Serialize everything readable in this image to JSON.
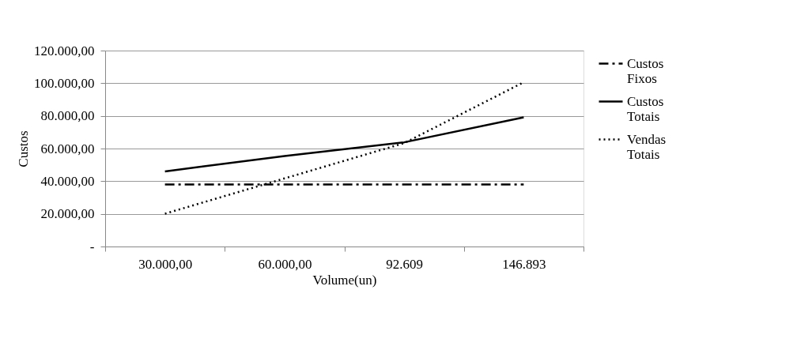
{
  "chart_data": {
    "type": "line",
    "xlabel": "Volume(un)",
    "ylabel": "Custos",
    "categories": [
      "30.000,00",
      "60.000,00",
      "92.609",
      "146.893"
    ],
    "series": [
      {
        "name": "Custos Fixos",
        "color": "#000000",
        "line_style": "dashed",
        "values": [
          38000,
          38000,
          38000,
          38000
        ]
      },
      {
        "name": "Custos Totais",
        "color": "#000000",
        "line_style": "solid",
        "values": [
          46000,
          55400,
          63800,
          79100
        ]
      },
      {
        "name": "Vendas Totais",
        "color": "#000000",
        "line_style": "dotted",
        "values": [
          20100,
          41700,
          63300,
          100600
        ]
      }
    ],
    "ylim": [
      0,
      120000
    ],
    "yticks": [
      {
        "value": 0,
        "label": "-"
      },
      {
        "value": 20000,
        "label": "20.000,00"
      },
      {
        "value": 40000,
        "label": "40.000,00"
      },
      {
        "value": 60000,
        "label": "60.000,00"
      },
      {
        "value": 80000,
        "label": "80.000,00"
      },
      {
        "value": 100000,
        "label": "100.000,00"
      },
      {
        "value": 120000,
        "label": "120.000,00"
      }
    ],
    "grid": "y",
    "legend": "right",
    "marker": "none"
  }
}
